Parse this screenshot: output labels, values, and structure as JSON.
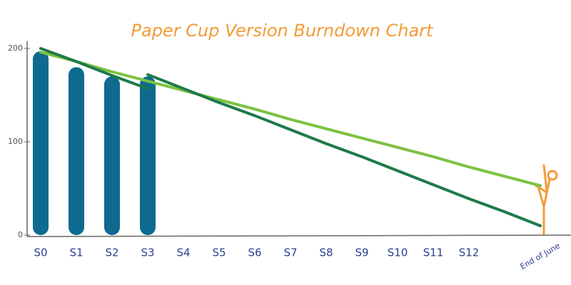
{
  "chart_data": {
    "type": "bar",
    "title": "Paper Cup Version Burndown Chart",
    "categories": [
      "S0",
      "S1",
      "S2",
      "S3",
      "S4",
      "S5",
      "S6",
      "S7",
      "S8",
      "S9",
      "S10",
      "S11",
      "S12",
      null,
      "End of June"
    ],
    "series": [
      {
        "color": "#0e6a8e",
        "values": [
          197,
          180,
          170,
          170,
          null,
          null,
          null,
          null,
          null,
          null,
          null,
          null,
          null,
          null,
          null
        ]
      },
      {
        "type": "line",
        "color": "#7dc242",
        "values": [
          196,
          186,
          175,
          165,
          155,
          145,
          135,
          124,
          114,
          104,
          94,
          84,
          73,
          63,
          53
        ]
      },
      {
        "type": "line",
        "color": "#1e7a4a",
        "values": [
          200,
          186,
          171,
          157,
          null,
          null,
          null,
          null,
          null,
          null,
          null,
          null,
          null,
          null,
          null
        ]
      },
      {
        "type": "line",
        "color": "#1e7a4a",
        "values": [
          null,
          null,
          null,
          172,
          157,
          142,
          128,
          113,
          98,
          84,
          69,
          54,
          39,
          25,
          10
        ]
      }
    ],
    "ylim": [
      0,
      200
    ],
    "yticks": [
      0,
      100,
      200
    ]
  }
}
